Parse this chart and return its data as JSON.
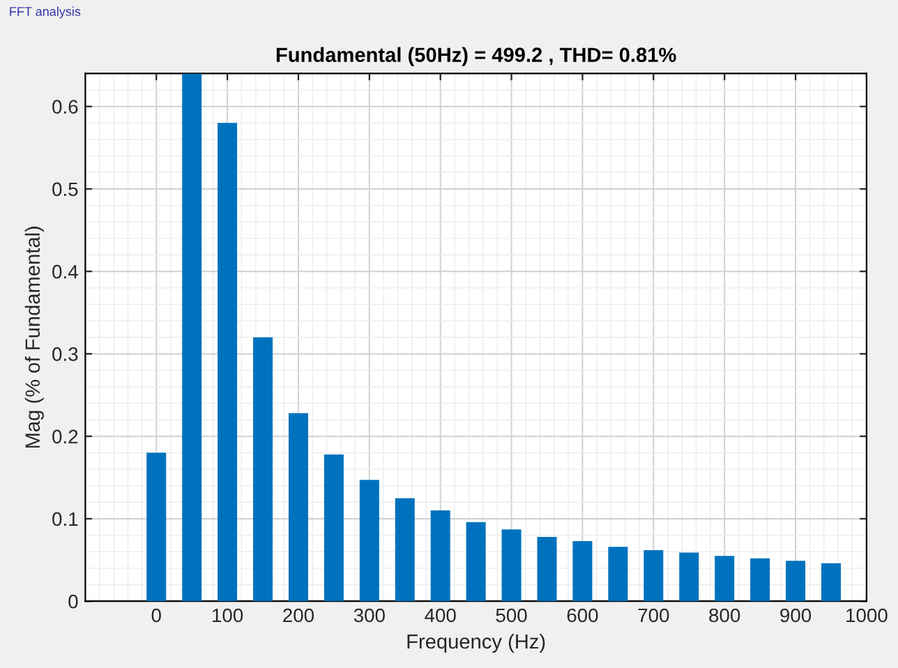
{
  "chart_data": {
    "type": "bar",
    "title": "Fundamental (50Hz) = 499.2 , THD= 0.81%",
    "xlabel": "Frequency (Hz)",
    "ylabel": "Mag (% of Fundamental)",
    "annotations": [
      "FFT analysis"
    ],
    "x": [
      0,
      50,
      100,
      150,
      200,
      250,
      300,
      350,
      400,
      450,
      500,
      550,
      600,
      650,
      700,
      750,
      800,
      850,
      900,
      950
    ],
    "values": [
      0.18,
      0.64,
      0.58,
      0.32,
      0.228,
      0.178,
      0.147,
      0.125,
      0.11,
      0.096,
      0.087,
      0.078,
      0.073,
      0.066,
      0.062,
      0.059,
      0.055,
      0.052,
      0.049,
      0.046
    ],
    "color": "#0072bd",
    "xlim": [
      -100,
      1000
    ],
    "xticks": [
      0,
      100,
      200,
      300,
      400,
      500,
      600,
      700,
      800,
      900,
      1000
    ],
    "ylim": [
      0,
      0.64
    ],
    "yticks": [
      0,
      0.1,
      0.2,
      0.3,
      0.4,
      0.5,
      0.6
    ],
    "grid": true
  }
}
